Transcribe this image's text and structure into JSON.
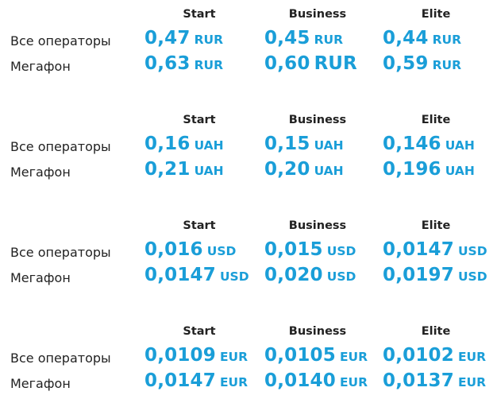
{
  "headers": [
    "Start",
    "Business",
    "Elite"
  ],
  "operators": [
    "Все операторы",
    "Мегафон"
  ],
  "blocks": [
    {
      "rows": [
        {
          "prices": [
            {
              "value": "0,47",
              "currency": "RUR"
            },
            {
              "value": "0,45",
              "currency": "RUR"
            },
            {
              "value": "0,44",
              "currency": "RUR"
            }
          ]
        },
        {
          "prices": [
            {
              "value": "0,63",
              "currency": "RUR"
            },
            {
              "value": "0,60",
              "currency": "RUR"
            },
            {
              "value": "0,59",
              "currency": "RUR"
            }
          ]
        }
      ]
    },
    {
      "rows": [
        {
          "prices": [
            {
              "value": "0,16",
              "currency": "UAH"
            },
            {
              "value": "0,15",
              "currency": "UAH"
            },
            {
              "value": "0,146",
              "currency": "UAH"
            }
          ]
        },
        {
          "prices": [
            {
              "value": "0,21",
              "currency": "UAH"
            },
            {
              "value": "0,20",
              "currency": "UAH"
            },
            {
              "value": "0,196",
              "currency": "UAH"
            }
          ]
        }
      ]
    },
    {
      "rows": [
        {
          "prices": [
            {
              "value": "0,016",
              "currency": "USD"
            },
            {
              "value": "0,015",
              "currency": "USD"
            },
            {
              "value": "0,0147",
              "currency": "USD"
            }
          ]
        },
        {
          "prices": [
            {
              "value": "0,0147",
              "currency": "USD"
            },
            {
              "value": "0,020",
              "currency": "USD"
            },
            {
              "value": "0,0197",
              "currency": "USD"
            }
          ]
        }
      ]
    },
    {
      "rows": [
        {
          "prices": [
            {
              "value": "0,0109",
              "currency": "EUR"
            },
            {
              "value": "0,0105",
              "currency": "EUR"
            },
            {
              "value": "0,0102",
              "currency": "EUR"
            }
          ]
        },
        {
          "prices": [
            {
              "value": "0,0147",
              "currency": "EUR"
            },
            {
              "value": "0,0140",
              "currency": "EUR"
            },
            {
              "value": "0,0137",
              "currency": "EUR"
            }
          ]
        }
      ]
    }
  ],
  "colors": {
    "price": "#1a9ed8",
    "text": "#222222"
  }
}
